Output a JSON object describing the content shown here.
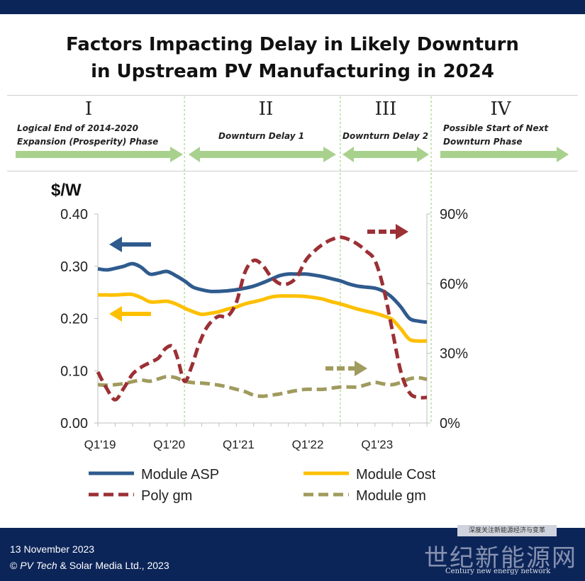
{
  "title_line1": "Factors Impacting Delay in Likely Downturn",
  "title_line2": "in Upstream PV Manufacturing in 2024",
  "phases": [
    {
      "numeral": "I",
      "label_line1": "Logical End of 2014-2020",
      "label_line2": "Expansion (Prosperity) Phase"
    },
    {
      "numeral": "II",
      "label_line1": "Downturn Delay 1",
      "label_line2": ""
    },
    {
      "numeral": "III",
      "label_line1": "Downturn Delay 2",
      "label_line2": ""
    },
    {
      "numeral": "IV",
      "label_line1": "Possible Start of Next",
      "label_line2": "Downturn Phase"
    }
  ],
  "chart_data": {
    "type": "line",
    "y_left_label": "$/W",
    "y_left_range": [
      0,
      0.4
    ],
    "y_left_ticks": [
      "0.00",
      "0.10",
      "0.20",
      "0.30",
      "0.40"
    ],
    "y_right_range": [
      0,
      0.9
    ],
    "y_right_ticks": [
      "0%",
      "30%",
      "60%",
      "90%"
    ],
    "x_range": [
      0,
      19
    ],
    "x_tick_labels": [
      "Q1'19",
      "Q1'20",
      "Q1'21",
      "Q1'22",
      "Q1'23"
    ],
    "x_tick_positions": [
      0,
      4,
      8,
      12,
      16
    ],
    "phase_dividers_x": [
      5,
      14,
      19
    ],
    "series": [
      {
        "name": "Module ASP",
        "axis": "left",
        "style": "solid",
        "color": "#2f5b8e",
        "x": [
          0,
          0.5,
          1,
          1.5,
          2,
          2.5,
          3,
          3.5,
          4,
          4.5,
          5,
          5.5,
          6,
          6.5,
          7,
          7.5,
          8,
          8.5,
          9,
          9.5,
          10,
          10.5,
          11,
          11.5,
          12,
          12.5,
          13,
          13.5,
          14,
          14.5,
          15,
          15.5,
          16,
          16.5,
          17,
          17.5,
          18,
          18.5,
          19
        ],
        "y": [
          0.295,
          0.293,
          0.296,
          0.3,
          0.305,
          0.298,
          0.285,
          0.287,
          0.29,
          0.282,
          0.272,
          0.26,
          0.255,
          0.252,
          0.252,
          0.253,
          0.255,
          0.258,
          0.262,
          0.268,
          0.275,
          0.282,
          0.285,
          0.285,
          0.285,
          0.283,
          0.28,
          0.276,
          0.272,
          0.266,
          0.262,
          0.26,
          0.258,
          0.252,
          0.24,
          0.222,
          0.2,
          0.195,
          0.193
        ]
      },
      {
        "name": "Module Cost",
        "axis": "left",
        "style": "solid",
        "color": "#fdc000",
        "x": [
          0,
          0.5,
          1,
          1.5,
          2,
          2.5,
          3,
          3.5,
          4,
          4.5,
          5,
          5.5,
          6,
          6.5,
          7,
          7.5,
          8,
          8.5,
          9,
          9.5,
          10,
          10.5,
          11,
          11.5,
          12,
          12.5,
          13,
          13.5,
          14,
          14.5,
          15,
          15.5,
          16,
          16.5,
          17,
          17.5,
          18,
          18.5,
          19
        ],
        "y": [
          0.245,
          0.245,
          0.245,
          0.246,
          0.246,
          0.24,
          0.232,
          0.232,
          0.233,
          0.228,
          0.22,
          0.213,
          0.208,
          0.21,
          0.213,
          0.218,
          0.222,
          0.228,
          0.232,
          0.236,
          0.241,
          0.243,
          0.243,
          0.243,
          0.242,
          0.24,
          0.237,
          0.232,
          0.228,
          0.223,
          0.218,
          0.214,
          0.21,
          0.205,
          0.198,
          0.18,
          0.16,
          0.157,
          0.157
        ]
      },
      {
        "name": "Poly gm",
        "axis": "right",
        "style": "dashed",
        "color": "#9b3035",
        "x": [
          0,
          0.5,
          1,
          1.5,
          2,
          2.5,
          3,
          3.5,
          3.9,
          4.3,
          4.6,
          5,
          5.4,
          5.8,
          6.2,
          6.6,
          7,
          7.5,
          8,
          8.5,
          9,
          9.5,
          10,
          10.5,
          11,
          11.5,
          12,
          12.5,
          13,
          13.5,
          14,
          14.5,
          15,
          15.5,
          16,
          16.5,
          17,
          17.5,
          18,
          18.5,
          19
        ],
        "y": [
          0.22,
          0.15,
          0.1,
          0.15,
          0.21,
          0.24,
          0.26,
          0.28,
          0.32,
          0.33,
          0.28,
          0.18,
          0.24,
          0.33,
          0.4,
          0.44,
          0.46,
          0.46,
          0.52,
          0.65,
          0.7,
          0.68,
          0.63,
          0.6,
          0.6,
          0.63,
          0.7,
          0.74,
          0.77,
          0.79,
          0.8,
          0.79,
          0.77,
          0.74,
          0.7,
          0.58,
          0.4,
          0.22,
          0.13,
          0.11,
          0.11
        ]
      },
      {
        "name": "Module gm",
        "axis": "right",
        "style": "dashed",
        "color": "#a09b5e",
        "x": [
          0,
          0.5,
          1,
          1.5,
          2,
          2.5,
          3,
          3.5,
          4,
          4.5,
          5,
          5.5,
          6,
          6.5,
          7,
          7.5,
          8,
          8.5,
          9,
          9.5,
          10,
          10.5,
          11,
          11.5,
          12,
          12.5,
          13,
          13.5,
          14,
          14.5,
          15,
          15.5,
          16,
          16.5,
          17,
          17.5,
          18,
          18.5,
          19
        ],
        "y": [
          0.165,
          0.163,
          0.165,
          0.17,
          0.178,
          0.185,
          0.18,
          0.19,
          0.2,
          0.195,
          0.18,
          0.174,
          0.172,
          0.168,
          0.163,
          0.155,
          0.145,
          0.135,
          0.12,
          0.115,
          0.12,
          0.125,
          0.133,
          0.14,
          0.145,
          0.145,
          0.145,
          0.15,
          0.155,
          0.155,
          0.155,
          0.165,
          0.175,
          0.168,
          0.165,
          0.175,
          0.19,
          0.195,
          0.188
        ]
      }
    ],
    "legend_position": "bottom"
  },
  "footer": {
    "date": "13 November  2023",
    "copyright_prefix": "© ",
    "copyright_brand": "PV Tech",
    "copyright_rest": " & Solar Media Ltd., 2023"
  },
  "watermark": {
    "banner": "深度关注新能源经济与变革",
    "main": "世纪新能源网",
    "sub": "Century new energy network"
  },
  "colors": {
    "navy": "#0c2559",
    "arrow_green": "#a9d18e",
    "grid_green": "#8fce6a"
  }
}
